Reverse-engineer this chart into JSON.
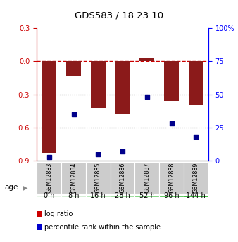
{
  "title": "GDS583 / 18.23.10",
  "samples": [
    "GSM12883",
    "GSM12884",
    "GSM12885",
    "GSM12886",
    "GSM12887",
    "GSM12888",
    "GSM12889"
  ],
  "age_labels": [
    "0 h",
    "8 h",
    "16 h",
    "28 h",
    "52 h",
    "96 h",
    "144 h"
  ],
  "log_ratio": [
    -0.83,
    -0.13,
    -0.42,
    -0.48,
    0.03,
    -0.36,
    -0.4
  ],
  "percentile_rank": [
    3,
    35,
    5,
    7,
    48,
    28,
    18
  ],
  "ylim_left": [
    -0.9,
    0.3
  ],
  "ylim_right": [
    0,
    100
  ],
  "left_ticks": [
    0.3,
    0.0,
    -0.3,
    -0.6,
    -0.9
  ],
  "right_ticks": [
    100,
    75,
    50,
    25,
    0
  ],
  "bar_color": "#8B1A1A",
  "dot_color": "#00008B",
  "age_colors": [
    "#e8f5e8",
    "#d4efd4",
    "#b8e8b8",
    "#9cdf9c",
    "#80d480",
    "#5ec85e",
    "#38b838"
  ],
  "gsm_bg": "#cccccc",
  "legend_bar_color": "#cc0000",
  "legend_dot_color": "#0000cc",
  "grid_line_color": "#555555",
  "zero_line_color": "#cc0000"
}
